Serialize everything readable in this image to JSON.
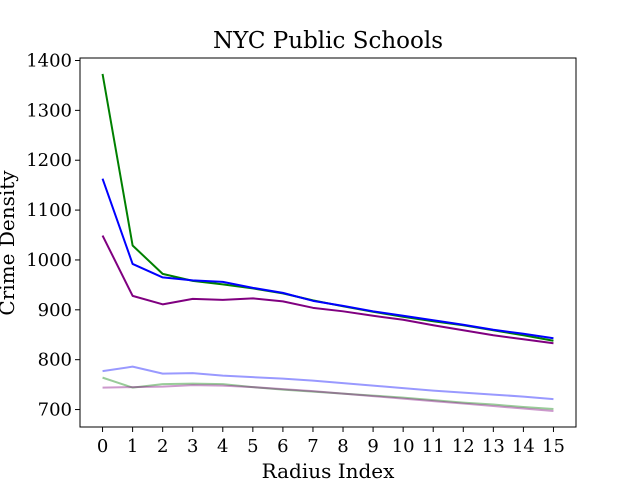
{
  "chart_data": {
    "type": "line",
    "title": "NYC Public Schools",
    "xlabel": "Radius Index",
    "ylabel": "Crime Density",
    "x": [
      0,
      1,
      2,
      3,
      4,
      5,
      6,
      7,
      8,
      9,
      10,
      11,
      12,
      13,
      14,
      15
    ],
    "xlim": [
      -0.75,
      15.75
    ],
    "ylim": [
      665,
      1405
    ],
    "xticks": [
      0,
      1,
      2,
      3,
      4,
      5,
      6,
      7,
      8,
      9,
      10,
      11,
      12,
      13,
      14,
      15
    ],
    "yticks": [
      700,
      800,
      900,
      1000,
      1100,
      1200,
      1300,
      1400
    ],
    "grid": false,
    "legend": "none",
    "series": [
      {
        "color": "#008000",
        "width": 2,
        "opacity": 1.0,
        "values": [
          1373,
          1029,
          972,
          958,
          951,
          943,
          933,
          919,
          907,
          896,
          886,
          877,
          869,
          859,
          849,
          838
        ]
      },
      {
        "color": "#0000ff",
        "width": 2,
        "opacity": 1.0,
        "values": [
          1163,
          992,
          965,
          959,
          956,
          944,
          934,
          918,
          908,
          897,
          888,
          879,
          870,
          860,
          852,
          843
        ]
      },
      {
        "color": "#800080",
        "width": 2,
        "opacity": 1.0,
        "values": [
          1049,
          928,
          911,
          922,
          920,
          923,
          917,
          904,
          897,
          888,
          880,
          869,
          859,
          849,
          841,
          833
        ]
      },
      {
        "color": "#0000ff",
        "width": 2,
        "opacity": 0.4,
        "values": [
          777,
          786,
          772,
          773,
          768,
          765,
          762,
          758,
          753,
          748,
          743,
          738,
          734,
          730,
          726,
          721
        ]
      },
      {
        "color": "#008000",
        "width": 2,
        "opacity": 0.4,
        "values": [
          764,
          744,
          751,
          752,
          751,
          745,
          740,
          736,
          732,
          728,
          724,
          719,
          714,
          710,
          705,
          701
        ]
      },
      {
        "color": "#800080",
        "width": 2,
        "opacity": 0.4,
        "values": [
          744,
          745,
          746,
          749,
          748,
          745,
          741,
          737,
          732,
          727,
          722,
          717,
          712,
          707,
          702,
          697
        ]
      }
    ]
  }
}
